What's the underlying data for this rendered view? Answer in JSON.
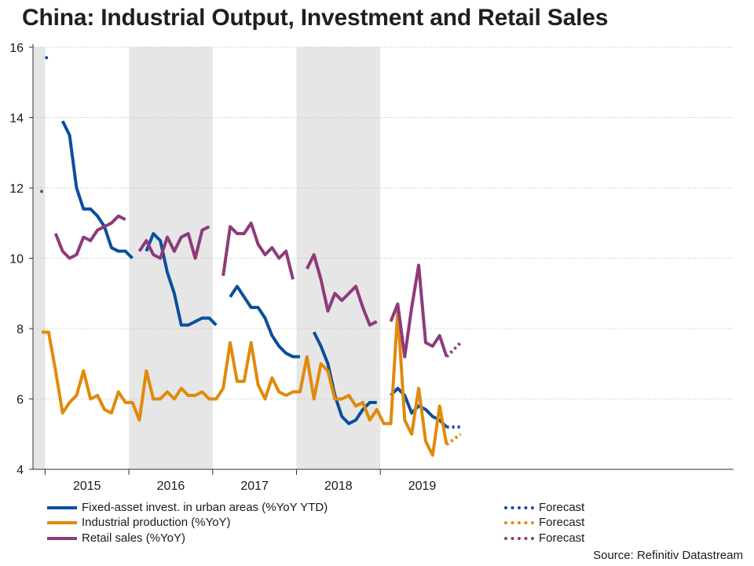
{
  "title": "China: Industrial Output, Investment and Retail Sales",
  "source": "Source: Refinitiv Datastream",
  "colors": {
    "fai": "#0a4f9e",
    "ip": "#e08a0b",
    "retail": "#8e3a7a",
    "shade": "#e6e6e6",
    "grid": "#bdbdbd"
  },
  "legend": [
    {
      "label": "Fixed-asset invest. in urban areas (%YoY YTD)",
      "color": "#0a4f9e",
      "style": "solid"
    },
    {
      "label": "Industrial production (%YoY)",
      "color": "#e08a0b",
      "style": "solid"
    },
    {
      "label": "Retail sales (%YoY)",
      "color": "#8e3a7a",
      "style": "solid"
    },
    {
      "label": "Forecast",
      "color": "#0a4f9e",
      "style": "dotted"
    },
    {
      "label": "Forecast",
      "color": "#e08a0b",
      "style": "dotted"
    },
    {
      "label": "Forecast",
      "color": "#8e3a7a",
      "style": "dotted"
    }
  ],
  "chart_data": {
    "type": "line",
    "x_unit": "month index (0 = Dec 2014, 1 = Jan 2015 ... 60 = Dec 2019)",
    "ylim": [
      4,
      16
    ],
    "yticks": [
      4,
      6,
      8,
      10,
      12,
      14,
      16
    ],
    "year_labels": [
      "2015",
      "2016",
      "2017",
      "2018",
      "2019"
    ],
    "shaded_years": [
      "2014",
      "2016",
      "2018"
    ],
    "grid": "horizontal dotted",
    "series": [
      {
        "name": "Fixed-asset invest. in urban areas (%YoY YTD)",
        "color": "#0a4f9e",
        "segments": [
          [
            [
              0.7,
              15.7
            ]
          ],
          [
            [
              3,
              13.9
            ],
            [
              4,
              13.5
            ],
            [
              5,
              12.0
            ],
            [
              6,
              11.4
            ],
            [
              7,
              11.4
            ],
            [
              8,
              11.2
            ],
            [
              9,
              10.9
            ],
            [
              10,
              10.3
            ],
            [
              11,
              10.2
            ],
            [
              12,
              10.2
            ],
            [
              13,
              10.0
            ]
          ],
          [
            [
              15,
              10.2
            ],
            [
              16,
              10.7
            ],
            [
              17,
              10.5
            ],
            [
              18,
              9.6
            ],
            [
              19,
              9.0
            ],
            [
              20,
              8.1
            ],
            [
              21,
              8.1
            ],
            [
              22,
              8.2
            ],
            [
              23,
              8.3
            ],
            [
              24,
              8.3
            ],
            [
              25,
              8.1
            ]
          ],
          [
            [
              27,
              8.9
            ],
            [
              28,
              9.2
            ],
            [
              29,
              8.9
            ],
            [
              30,
              8.6
            ],
            [
              31,
              8.6
            ],
            [
              32,
              8.3
            ],
            [
              33,
              7.8
            ],
            [
              34,
              7.5
            ],
            [
              35,
              7.3
            ],
            [
              36,
              7.2
            ],
            [
              37,
              7.2
            ]
          ],
          [
            [
              39,
              7.9
            ],
            [
              40,
              7.5
            ],
            [
              41,
              7.0
            ],
            [
              42,
              6.1
            ],
            [
              43,
              5.5
            ],
            [
              44,
              5.3
            ],
            [
              45,
              5.4
            ],
            [
              46,
              5.7
            ],
            [
              47,
              5.9
            ],
            [
              48,
              5.9
            ]
          ],
          [
            [
              50,
              6.1
            ],
            [
              51,
              6.3
            ],
            [
              52,
              6.1
            ],
            [
              53,
              5.6
            ],
            [
              54,
              5.8
            ],
            [
              55,
              5.7
            ],
            [
              56,
              5.5
            ],
            [
              57,
              5.4
            ],
            [
              58,
              5.2
            ]
          ]
        ],
        "forecast": [
          [
            58,
            5.2
          ],
          [
            60,
            5.2
          ]
        ]
      },
      {
        "name": "Industrial production (%YoY)",
        "color": "#e08a0b",
        "segments": [
          [
            [
              0,
              7.9
            ],
            [
              1,
              7.9
            ],
            [
              2,
              6.8
            ],
            [
              3,
              5.6
            ],
            [
              4,
              5.9
            ],
            [
              5,
              6.1
            ],
            [
              6,
              6.8
            ],
            [
              7,
              6.0
            ],
            [
              8,
              6.1
            ],
            [
              9,
              5.7
            ],
            [
              10,
              5.6
            ],
            [
              11,
              6.2
            ],
            [
              12,
              5.9
            ],
            [
              13,
              5.9
            ],
            [
              14,
              5.4
            ],
            [
              15,
              6.8
            ],
            [
              16,
              6.0
            ],
            [
              17,
              6.0
            ],
            [
              18,
              6.2
            ],
            [
              19,
              6.0
            ],
            [
              20,
              6.3
            ],
            [
              21,
              6.1
            ],
            [
              22,
              6.1
            ],
            [
              23,
              6.2
            ],
            [
              24,
              6.0
            ],
            [
              25,
              6.0
            ],
            [
              26,
              6.3
            ],
            [
              27,
              7.6
            ],
            [
              28,
              6.5
            ],
            [
              29,
              6.5
            ],
            [
              30,
              7.6
            ],
            [
              31,
              6.4
            ],
            [
              32,
              6.0
            ],
            [
              33,
              6.6
            ],
            [
              34,
              6.2
            ],
            [
              35,
              6.1
            ],
            [
              36,
              6.2
            ],
            [
              37,
              6.2
            ],
            [
              38,
              7.2
            ],
            [
              39,
              6.0
            ],
            [
              40,
              7.0
            ],
            [
              41,
              6.8
            ],
            [
              42,
              6.0
            ],
            [
              43,
              6.0
            ],
            [
              44,
              6.1
            ],
            [
              45,
              5.8
            ],
            [
              46,
              5.9
            ],
            [
              47,
              5.4
            ],
            [
              48,
              5.7
            ],
            [
              49,
              5.3
            ],
            [
              50,
              5.3
            ],
            [
              51,
              8.5
            ],
            [
              52,
              5.4
            ],
            [
              53,
              5.0
            ],
            [
              54,
              6.3
            ],
            [
              55,
              4.8
            ],
            [
              56,
              4.4
            ],
            [
              57,
              5.8
            ],
            [
              58,
              4.7
            ]
          ]
        ],
        "forecast": [
          [
            58,
            4.7
          ],
          [
            60,
            5.0
          ]
        ]
      },
      {
        "name": "Retail sales (%YoY)",
        "color": "#8e3a7a",
        "segments": [
          [
            [
              0,
              11.9
            ]
          ],
          [
            [
              2,
              10.7
            ],
            [
              3,
              10.2
            ],
            [
              4,
              10.0
            ],
            [
              5,
              10.1
            ],
            [
              6,
              10.6
            ],
            [
              7,
              10.5
            ],
            [
              8,
              10.8
            ],
            [
              9,
              10.9
            ],
            [
              10,
              11.0
            ],
            [
              11,
              11.2
            ],
            [
              12,
              11.1
            ]
          ],
          [
            [
              14,
              10.2
            ],
            [
              15,
              10.5
            ],
            [
              16,
              10.1
            ],
            [
              17,
              10.0
            ],
            [
              18,
              10.6
            ],
            [
              19,
              10.2
            ],
            [
              20,
              10.6
            ],
            [
              21,
              10.7
            ],
            [
              22,
              10.0
            ],
            [
              23,
              10.8
            ],
            [
              24,
              10.9
            ]
          ],
          [
            [
              26,
              9.5
            ],
            [
              27,
              10.9
            ],
            [
              28,
              10.7
            ],
            [
              29,
              10.7
            ],
            [
              30,
              11.0
            ],
            [
              31,
              10.4
            ],
            [
              32,
              10.1
            ],
            [
              33,
              10.3
            ],
            [
              34,
              10.0
            ],
            [
              35,
              10.2
            ],
            [
              36,
              9.4
            ]
          ],
          [
            [
              38,
              9.7
            ],
            [
              39,
              10.1
            ],
            [
              40,
              9.4
            ],
            [
              41,
              8.5
            ],
            [
              42,
              9.0
            ],
            [
              43,
              8.8
            ],
            [
              44,
              9.0
            ],
            [
              45,
              9.2
            ],
            [
              46,
              8.6
            ],
            [
              47,
              8.1
            ],
            [
              48,
              8.2
            ]
          ],
          [
            [
              50,
              8.2
            ],
            [
              51,
              8.7
            ],
            [
              52,
              7.2
            ],
            [
              53,
              8.6
            ],
            [
              54,
              9.8
            ],
            [
              55,
              7.6
            ],
            [
              56,
              7.5
            ],
            [
              57,
              7.8
            ],
            [
              58,
              7.2
            ]
          ]
        ],
        "forecast": [
          [
            58,
            7.2
          ],
          [
            60,
            7.6
          ]
        ]
      }
    ]
  }
}
